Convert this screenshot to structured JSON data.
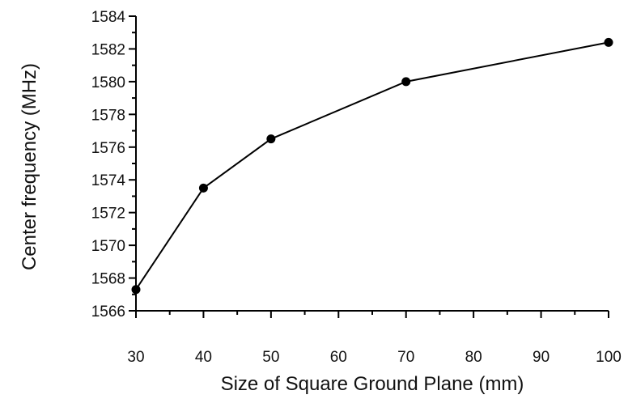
{
  "chart_data": {
    "type": "line",
    "title": "",
    "xlabel": "Size of Square Ground Plane (mm)",
    "ylabel": "Center frequency (MHz)",
    "xlim": [
      30,
      100
    ],
    "ylim": [
      1566,
      1584
    ],
    "xticks": [
      30,
      40,
      50,
      60,
      70,
      80,
      90,
      100
    ],
    "yticks": [
      1566,
      1568,
      1570,
      1572,
      1574,
      1576,
      1578,
      1580,
      1582,
      1584
    ],
    "grid": false,
    "legend": "none",
    "series": [
      {
        "x": [
          30,
          40,
          50,
          70,
          100
        ],
        "y": [
          1567.3,
          1573.5,
          1576.5,
          1580.0,
          1582.4
        ],
        "marker": "circle",
        "color": "#000000"
      }
    ]
  }
}
